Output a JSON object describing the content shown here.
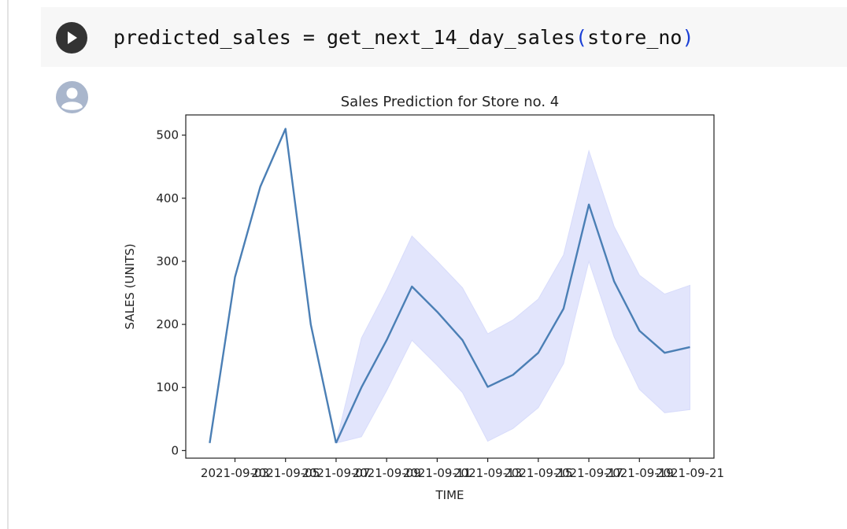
{
  "code_cell": {
    "run_label": "run-cell",
    "code_var": "predicted_sales",
    "code_eq": " = ",
    "code_func": "get_next_14_day_sales",
    "code_open": "(",
    "code_arg": "store_no",
    "code_close": ")"
  },
  "output": {
    "avatar_icon": "user-avatar-icon"
  },
  "colors": {
    "line": "#4b7fb5",
    "band": "#d8dcfb",
    "paren": "#1a3fd6"
  },
  "chart_data": {
    "type": "line",
    "title": "Sales Prediction for Store no. 4",
    "xlabel": "TIME",
    "ylabel": "SALES (UNITS)",
    "ylim": [
      -12,
      532
    ],
    "yticks": [
      0,
      100,
      200,
      300,
      400,
      500
    ],
    "xticks": [
      "2021-09-03",
      "2021-09-05",
      "2021-09-07",
      "2021-09-09",
      "2021-09-11",
      "2021-09-13",
      "2021-09-15",
      "2021-09-17",
      "2021-09-19",
      "2021-09-21"
    ],
    "xtick_first_label_prefix": "2021-",
    "grid": false,
    "series": [
      {
        "kind": "actual",
        "x": [
          "2021-09-02",
          "2021-09-03",
          "2021-09-04",
          "2021-09-05",
          "2021-09-06",
          "2021-09-07"
        ],
        "values": [
          12,
          275,
          418,
          510,
          200,
          12
        ]
      },
      {
        "kind": "predicted",
        "x": [
          "2021-09-07",
          "2021-09-08",
          "2021-09-09",
          "2021-09-10",
          "2021-09-11",
          "2021-09-12",
          "2021-09-13",
          "2021-09-14",
          "2021-09-15",
          "2021-09-16",
          "2021-09-17",
          "2021-09-18",
          "2021-09-19",
          "2021-09-20",
          "2021-09-21"
        ],
        "values": [
          12,
          100,
          175,
          260,
          220,
          175,
          101,
          120,
          155,
          225,
          390,
          268,
          190,
          155,
          164
        ],
        "lower": [
          12,
          22,
          95,
          175,
          135,
          92,
          15,
          35,
          68,
          138,
          300,
          180,
          97,
          60,
          65
        ],
        "upper": [
          12,
          178,
          255,
          340,
          300,
          258,
          185,
          207,
          240,
          310,
          475,
          355,
          278,
          248,
          262
        ]
      }
    ]
  }
}
